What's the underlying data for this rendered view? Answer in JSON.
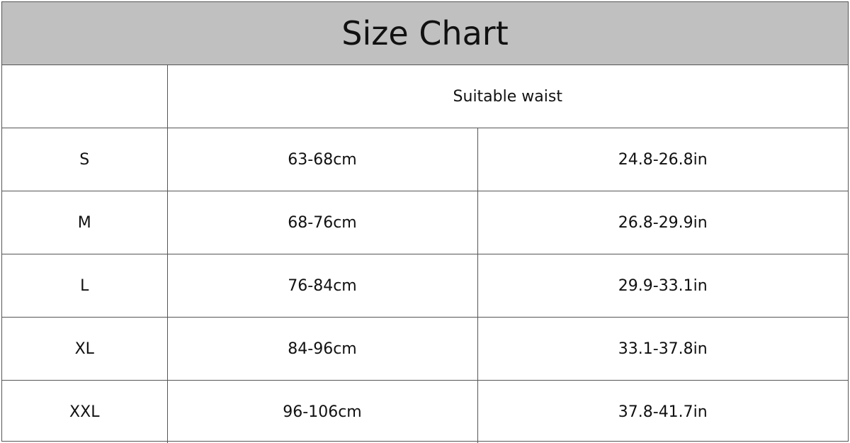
{
  "title": "Size Chart",
  "header": {
    "corner": "",
    "waist_label": "Suitable waist"
  },
  "rows": [
    {
      "size": "S",
      "cm": "63-68cm",
      "inch": "24.8-26.8in"
    },
    {
      "size": "M",
      "cm": "68-76cm",
      "inch": "26.8-29.9in"
    },
    {
      "size": "L",
      "cm": "76-84cm",
      "inch": "29.9-33.1in"
    },
    {
      "size": "XL",
      "cm": "84-96cm",
      "inch": "33.1-37.8in"
    },
    {
      "size": "XXL",
      "cm": "96-106cm",
      "inch": "37.8-41.7in"
    }
  ],
  "colors": {
    "title_background": "#c0c0c0",
    "border": "#555555",
    "text": "#111111"
  }
}
